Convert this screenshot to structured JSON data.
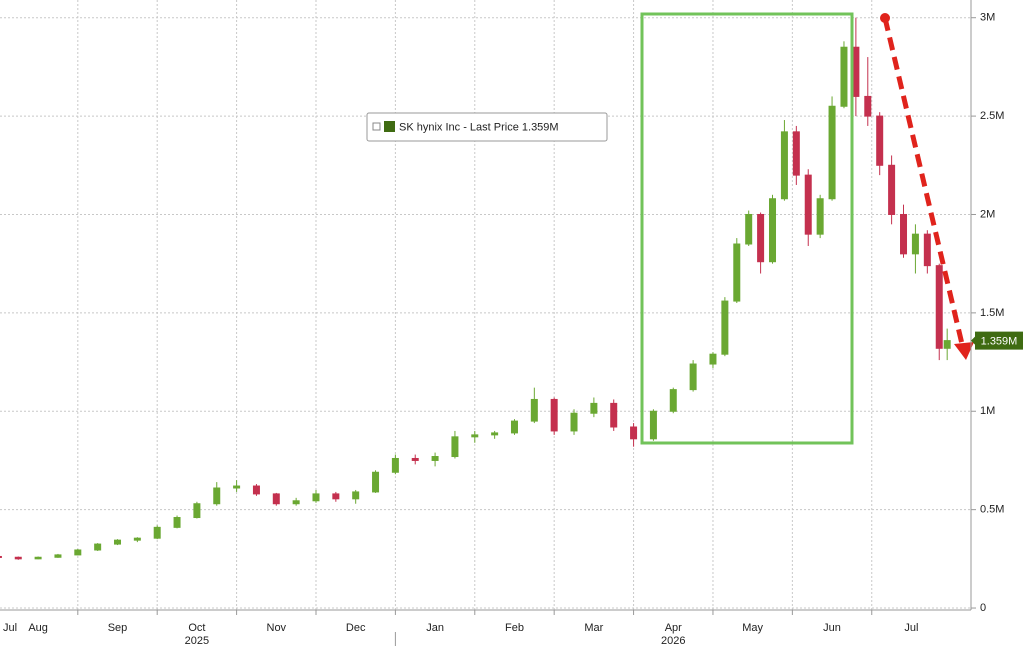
{
  "chart_data": {
    "type": "candlestick",
    "series": [
      {
        "name": "SK hynix Inc - Last Price",
        "color": "#3f6b12",
        "up_color": "#6aa832",
        "down_color": "#c4304e",
        "x": [
          1.0,
          1.25,
          1.5,
          1.75,
          2.0,
          2.25,
          2.5,
          2.75,
          3.0,
          3.25,
          3.5,
          3.75,
          4.0,
          4.25,
          4.5,
          4.75,
          5.0,
          5.25,
          5.5,
          5.75,
          6.0,
          6.25,
          6.5,
          6.75,
          7.0,
          7.25,
          7.5,
          7.75,
          8.0,
          8.25,
          8.5,
          8.75,
          9.0,
          9.25,
          9.5,
          9.75,
          10.0,
          10.15,
          10.3,
          10.45,
          10.6,
          10.75,
          10.9,
          11.05,
          11.2,
          11.35,
          11.5,
          11.65,
          11.8,
          11.95,
          12.1,
          12.25,
          12.4,
          12.55,
          12.7,
          12.85,
          12.95
        ],
        "open": [
          262000,
          258000,
          250000,
          258000,
          270000,
          295000,
          325000,
          345000,
          355000,
          410000,
          460000,
          530000,
          610000,
          620000,
          580000,
          530000,
          545000,
          580000,
          555000,
          590000,
          690000,
          760000,
          750000,
          770000,
          870000,
          880000,
          890000,
          950000,
          1060000,
          900000,
          990000,
          1040000,
          920000,
          860000,
          1000000,
          1110000,
          1240000,
          1290000,
          1560000,
          1850000,
          2000000,
          1760000,
          2080000,
          2420000,
          2200000,
          1900000,
          2080000,
          2550000,
          2850000,
          2600000,
          2500000,
          2250000,
          2000000,
          1800000,
          1900000,
          1740000,
          1320000
        ],
        "high": [
          268000,
          262000,
          262000,
          275000,
          300000,
          330000,
          350000,
          360000,
          420000,
          470000,
          540000,
          640000,
          650000,
          630000,
          585000,
          560000,
          600000,
          590000,
          600000,
          700000,
          780000,
          780000,
          790000,
          900000,
          900000,
          900000,
          960000,
          1120000,
          1070000,
          1010000,
          1070000,
          1060000,
          940000,
          1010000,
          1120000,
          1260000,
          1300000,
          1580000,
          1880000,
          2020000,
          2010000,
          2100000,
          2480000,
          2450000,
          2230000,
          2100000,
          2600000,
          2880000,
          3000000,
          2800000,
          2520000,
          2300000,
          2050000,
          1950000,
          1920000,
          1750000,
          1420000
        ],
        "low": [
          255000,
          245000,
          248000,
          255000,
          268000,
          290000,
          320000,
          335000,
          350000,
          405000,
          455000,
          520000,
          590000,
          570000,
          520000,
          520000,
          535000,
          540000,
          530000,
          585000,
          680000,
          730000,
          720000,
          760000,
          840000,
          860000,
          880000,
          940000,
          880000,
          880000,
          970000,
          900000,
          820000,
          850000,
          990000,
          1100000,
          1220000,
          1280000,
          1550000,
          1840000,
          1700000,
          1750000,
          2070000,
          2150000,
          1840000,
          1880000,
          2070000,
          2540000,
          2500000,
          2450000,
          2200000,
          1950000,
          1780000,
          1700000,
          1700000,
          1260000,
          1260000
        ],
        "close": [
          258000,
          250000,
          258000,
          270000,
          295000,
          325000,
          345000,
          355000,
          410000,
          460000,
          530000,
          610000,
          620000,
          580000,
          530000,
          545000,
          580000,
          555000,
          590000,
          690000,
          760000,
          750000,
          770000,
          870000,
          880000,
          890000,
          950000,
          1060000,
          900000,
          990000,
          1040000,
          920000,
          860000,
          1000000,
          1110000,
          1240000,
          1290000,
          1560000,
          1850000,
          2000000,
          1760000,
          2080000,
          2420000,
          2200000,
          1900000,
          2080000,
          2550000,
          2850000,
          2600000,
          2500000,
          2250000,
          2000000,
          1800000,
          1900000,
          1740000,
          1320000,
          1359000
        ],
        "last_price": {
          "value": 1359000,
          "label": "1.359M"
        }
      }
    ],
    "xlim": [
      1.02,
      13.25
    ],
    "xticks": [
      {
        "value": 0,
        "label": "Jul"
      },
      {
        "value": 1,
        "label": "Aug"
      },
      {
        "value": 2,
        "label": "Sep"
      },
      {
        "value": 3,
        "label": "Oct"
      },
      {
        "value": 4,
        "label": "Nov"
      },
      {
        "value": 5,
        "label": "Dec"
      },
      {
        "value": 6,
        "label": "Jan"
      },
      {
        "value": 7,
        "label": "Feb"
      },
      {
        "value": 8,
        "label": "Mar"
      },
      {
        "value": 9,
        "label": "Apr"
      },
      {
        "value": 10,
        "label": "May"
      },
      {
        "value": 11,
        "label": "Jun"
      },
      {
        "value": 12,
        "label": "Jul"
      }
    ],
    "years": [
      "2025",
      "2026"
    ],
    "ylim": [
      -10000,
      3090000
    ],
    "yticks": [
      0,
      {
        "value": 500000,
        "label": "0.5M"
      },
      {
        "value": 1000000,
        "label": "1M"
      },
      {
        "value": 1500000,
        "label": "1.5M"
      },
      {
        "value": 2000000,
        "label": "2M"
      },
      {
        "value": 2500000,
        "label": "2.5M"
      },
      {
        "value": 3000000,
        "label": "3M"
      }
    ],
    "grid": true
  }
}
